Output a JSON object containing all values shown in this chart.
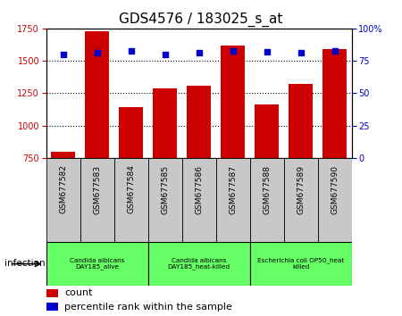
{
  "title": "GDS4576 / 183025_s_at",
  "samples": [
    "GSM677582",
    "GSM677583",
    "GSM677584",
    "GSM677585",
    "GSM677586",
    "GSM677587",
    "GSM677588",
    "GSM677589",
    "GSM677590"
  ],
  "counts": [
    800,
    1730,
    1140,
    1285,
    1305,
    1620,
    1165,
    1320,
    1590
  ],
  "percentiles": [
    80,
    81,
    83,
    80,
    81,
    83,
    82,
    81,
    83
  ],
  "ylim_left": [
    750,
    1750
  ],
  "ylim_right": [
    0,
    100
  ],
  "yticks_left": [
    750,
    1000,
    1250,
    1500,
    1750
  ],
  "yticks_right": [
    0,
    25,
    50,
    75,
    100
  ],
  "bar_color": "#cc0000",
  "dot_color": "#0000cc",
  "groups": [
    {
      "label": "Candida albicans\nDAY185_alive",
      "start": 0,
      "end": 3,
      "color": "#66ff66"
    },
    {
      "label": "Candida albicans\nDAY185_heat-killed",
      "start": 3,
      "end": 6,
      "color": "#66ff66"
    },
    {
      "label": "Escherichia coli OP50_heat\nkilled",
      "start": 6,
      "end": 9,
      "color": "#66ff66"
    }
  ],
  "infection_label": "infection",
  "legend_count_label": "count",
  "legend_pct_label": "percentile rank within the sample",
  "tick_area_color": "#c8c8c8",
  "right_ytick_labels": [
    "0",
    "25",
    "50",
    "75",
    "100%"
  ]
}
